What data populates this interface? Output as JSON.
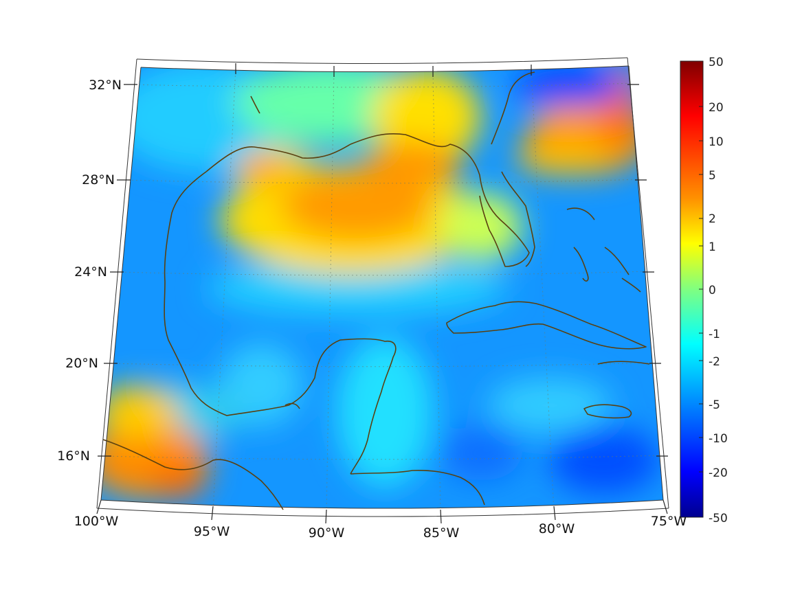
{
  "map": {
    "lat_labels": [
      "32°N",
      "28°N",
      "24°N",
      "20°N",
      "16°N"
    ],
    "lon_labels": [
      "100°W",
      "95°W",
      "90°W",
      "85°W",
      "80°W",
      "75°W"
    ],
    "coastline_color": "#5a4010",
    "grid": true,
    "colormap": "jet"
  },
  "colorbar": {
    "labels": [
      "50",
      "20",
      "10",
      "5",
      "2",
      "1",
      "0",
      "-1",
      "-2",
      "-5",
      "-10",
      "-20",
      "-50"
    ],
    "colors": [
      "#7f0000",
      "#ff0000",
      "#ff8000",
      "#ffff00",
      "#80ff80",
      "#00ffff",
      "#0080ff",
      "#0000ff",
      "#00008f"
    ]
  }
}
